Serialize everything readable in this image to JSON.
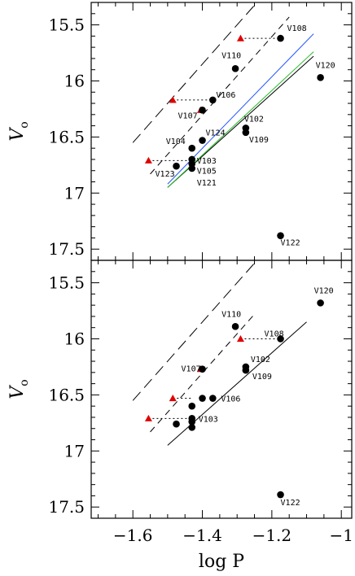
{
  "chart_data": [
    {
      "type": "scatter",
      "panel": "top",
      "xlabel": "log P",
      "ylabel": "V_o",
      "xlim": [
        -1.72,
        -0.97
      ],
      "ylim": [
        17.6,
        15.3
      ],
      "y_inverted": true,
      "x_ticks": [
        -1.6,
        -1.4,
        -1.2,
        -1.0
      ],
      "y_ticks": [
        15.5,
        16,
        16.5,
        17,
        17.5
      ],
      "y_tick_labels": [
        "15.5",
        "16",
        "16.5",
        "17",
        "17.5"
      ],
      "stars": [
        {
          "name": "V108",
          "x": -1.175,
          "y": 15.62,
          "shown": true,
          "label": "V108"
        },
        {
          "name": "V110",
          "x": -1.305,
          "y": 15.89,
          "shown": true,
          "label": "V110"
        },
        {
          "name": "V120",
          "x": -1.06,
          "y": 15.97,
          "shown": true,
          "label": "V120"
        },
        {
          "name": "V106",
          "x": -1.37,
          "y": 16.17,
          "shown": true,
          "label": "V106"
        },
        {
          "name": "V107",
          "x": -1.4,
          "y": 16.26,
          "shown": true,
          "label": "V107"
        },
        {
          "name": "V102",
          "x": -1.275,
          "y": 16.42,
          "shown": true,
          "label": "V102"
        },
        {
          "name": "V109",
          "x": -1.275,
          "y": 16.46,
          "shown": true,
          "label": "V109"
        },
        {
          "name": "V124",
          "x": -1.4,
          "y": 16.53,
          "shown": true,
          "label": "V124"
        },
        {
          "name": "V104",
          "x": -1.43,
          "y": 16.6,
          "shown": true,
          "label": "V104"
        },
        {
          "name": "V103",
          "x": -1.43,
          "y": 16.7,
          "shown": true,
          "label": "V103"
        },
        {
          "name": "V105",
          "x": -1.43,
          "y": 16.74,
          "shown": true,
          "label": "V105"
        },
        {
          "name": "V121",
          "x": -1.43,
          "y": 16.78,
          "shown": true,
          "label": "V121"
        },
        {
          "name": "V123",
          "x": -1.475,
          "y": 16.76,
          "shown": true,
          "label": "V123"
        },
        {
          "name": "V122",
          "x": -1.175,
          "y": 17.38,
          "shown": true,
          "label": "V122"
        }
      ],
      "fundamentalized": [
        {
          "x": -1.29,
          "y": 15.62,
          "to_x": -1.175
        },
        {
          "x": -1.485,
          "y": 16.17,
          "to_x": -1.37
        },
        {
          "x": -1.405,
          "y": 16.26,
          "to_x": -1.4
        },
        {
          "x": -1.555,
          "y": 16.71,
          "to_x": -1.43
        }
      ],
      "relations": [
        {
          "style": "long-dash",
          "color": "#000000",
          "x": [
            -1.6,
            -1.2
          ],
          "y": [
            16.55,
            15.15
          ]
        },
        {
          "style": "dash",
          "color": "#000000",
          "x": [
            -1.55,
            -1.15
          ],
          "y": [
            16.83,
            15.43
          ]
        },
        {
          "style": "solid",
          "color": "#000000",
          "x": [
            -1.5,
            -1.08
          ],
          "y": [
            16.95,
            15.78
          ]
        },
        {
          "style": "solid",
          "color": "#2255ff",
          "x": [
            -1.5,
            -1.08
          ],
          "y": [
            16.92,
            15.58
          ]
        },
        {
          "style": "solid",
          "color": "#22bb22",
          "x": [
            -1.5,
            -1.08
          ],
          "y": [
            16.95,
            15.74
          ]
        }
      ]
    },
    {
      "type": "scatter",
      "panel": "bottom",
      "xlabel": "log P",
      "ylabel": "V_o",
      "xlim": [
        -1.72,
        -0.97
      ],
      "ylim": [
        17.6,
        15.3
      ],
      "y_inverted": true,
      "x_ticks": [
        -1.6,
        -1.4,
        -1.2,
        -1.0
      ],
      "x_tick_labels": [
        "−1.6",
        "−1.4",
        "−1.2",
        "−1"
      ],
      "y_ticks": [
        15.5,
        16,
        16.5,
        17,
        17.5
      ],
      "y_tick_labels": [
        "15.5",
        "16",
        "16.5",
        "17",
        "17.5"
      ],
      "stars": [
        {
          "name": "V120",
          "x": -1.06,
          "y": 15.68,
          "shown": true,
          "label": "V120"
        },
        {
          "name": "V110",
          "x": -1.305,
          "y": 15.89,
          "shown": true,
          "label": "V110"
        },
        {
          "name": "V108",
          "x": -1.175,
          "y": 16.0,
          "shown": true,
          "label": "V108"
        },
        {
          "name": "V107",
          "x": -1.4,
          "y": 16.27,
          "shown": true,
          "label": "V107"
        },
        {
          "name": "V102",
          "x": -1.275,
          "y": 16.25,
          "shown": true,
          "label": "V102"
        },
        {
          "name": "V109",
          "x": -1.275,
          "y": 16.28,
          "shown": true,
          "label": "V109"
        },
        {
          "name": "V106",
          "x": -1.37,
          "y": 16.53,
          "shown": true,
          "label": "V106"
        },
        {
          "name": "V124",
          "x": -1.4,
          "y": 16.53,
          "shown": false,
          "label": ""
        },
        {
          "name": "V104",
          "x": -1.43,
          "y": 16.6,
          "shown": false,
          "label": ""
        },
        {
          "name": "V103",
          "x": -1.43,
          "y": 16.71,
          "shown": true,
          "label": "V103"
        },
        {
          "name": "V105",
          "x": -1.43,
          "y": 16.74,
          "shown": false,
          "label": ""
        },
        {
          "name": "V121",
          "x": -1.43,
          "y": 16.79,
          "shown": false,
          "label": ""
        },
        {
          "name": "V123",
          "x": -1.475,
          "y": 16.76,
          "shown": false,
          "label": ""
        },
        {
          "name": "V122",
          "x": -1.175,
          "y": 17.39,
          "shown": true,
          "label": "V122"
        }
      ],
      "fundamentalized": [
        {
          "x": -1.29,
          "y": 16.0,
          "to_x": -1.175
        },
        {
          "x": -1.405,
          "y": 16.27,
          "to_x": -1.4
        },
        {
          "x": -1.485,
          "y": 16.53,
          "to_x": -1.43
        },
        {
          "x": -1.555,
          "y": 16.71,
          "to_x": -1.43
        }
      ],
      "relations": [
        {
          "style": "long-dash",
          "color": "#000000",
          "x": [
            -1.6,
            -1.2
          ],
          "y": [
            16.55,
            15.15
          ]
        },
        {
          "style": "dash",
          "color": "#000000",
          "x": [
            -1.55,
            -1.25
          ],
          "y": [
            16.83,
            15.78
          ]
        },
        {
          "style": "solid",
          "color": "#000000",
          "x": [
            -1.5,
            -1.1
          ],
          "y": [
            16.95,
            15.85
          ]
        }
      ]
    }
  ],
  "colors": {
    "star": "#000000",
    "fundamentalized": "#e00000",
    "axis": "#000000"
  }
}
